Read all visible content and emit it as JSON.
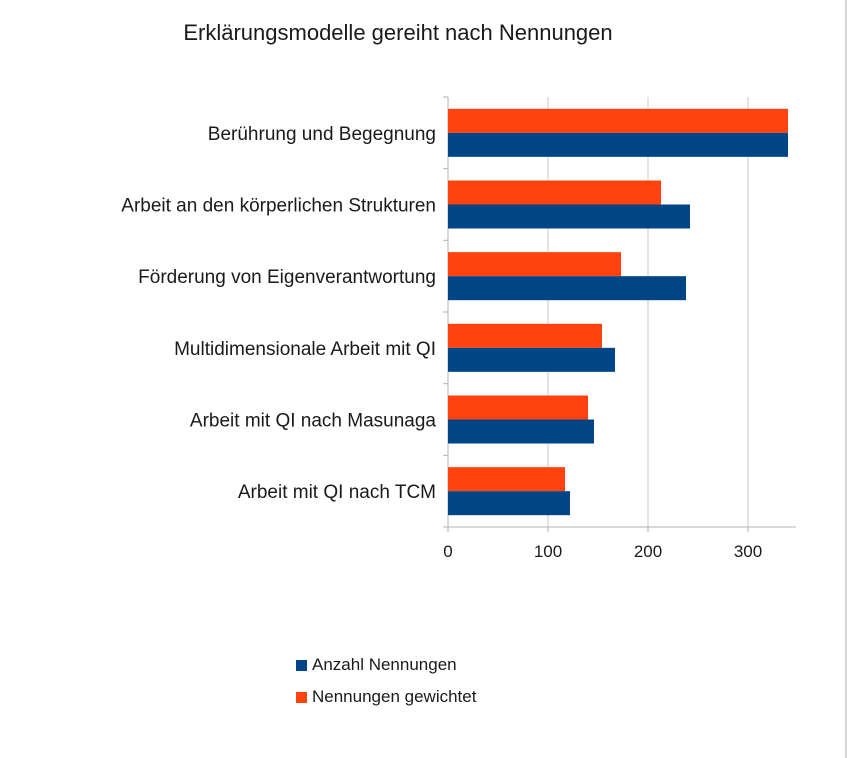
{
  "chart_data": {
    "type": "bar",
    "orientation": "horizontal",
    "title": "Erklärungsmodelle gereiht nach Nennungen",
    "categories": [
      "Berührung und Begegnung",
      "Arbeit an den körperlichen Strukturen",
      "Förderung von Eigenverantwortung",
      "Multidimensionale Arbeit mit QI",
      "Arbeit mit QI nach Masunaga",
      "Arbeit mit QI nach TCM"
    ],
    "series": [
      {
        "name": "Nennungen gewichtet",
        "color": "#ff420e",
        "values": [
          340,
          213,
          173,
          154,
          140,
          117
        ]
      },
      {
        "name": "Anzahl Nennungen",
        "color": "#004586",
        "values": [
          340,
          242,
          238,
          167,
          146,
          122
        ]
      }
    ],
    "xlabel": "",
    "ylabel": "",
    "xlim": [
      0,
      348
    ],
    "xticks": [
      0,
      100,
      200,
      300
    ],
    "grid": true,
    "legend_position": "bottom",
    "legend": [
      "Anzahl Nennungen",
      "Nennungen gewichtet"
    ]
  }
}
